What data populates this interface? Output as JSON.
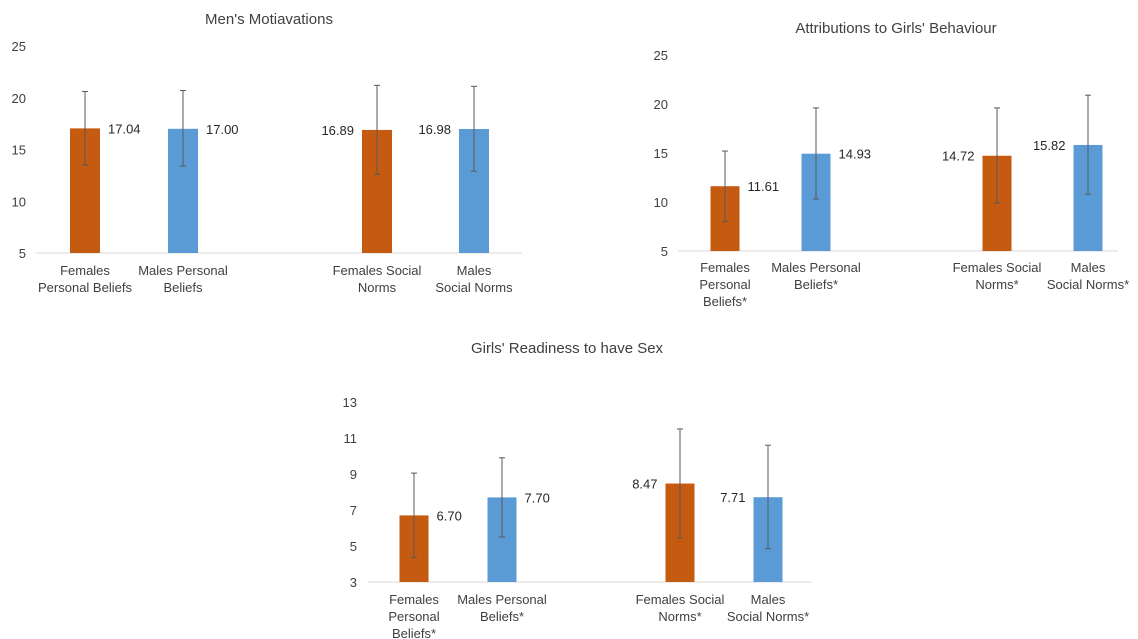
{
  "colors": {
    "females": "#c55a11",
    "males": "#5b9bd5",
    "axis": "#d9d9d9",
    "error": "#595959",
    "text": "#404040"
  },
  "chart_data": [
    {
      "type": "bar",
      "title": "Men's Motiavations",
      "ylim": [
        5,
        25
      ],
      "yticks": [
        5,
        10,
        15,
        20,
        25
      ],
      "grid": false,
      "categories": [
        [
          "Females",
          "Personal Beliefs"
        ],
        [
          "Males Personal",
          "Beliefs"
        ],
        [
          "Females Social",
          "Norms"
        ],
        [
          "Males",
          "Social Norms"
        ]
      ],
      "group": [
        "females",
        "males",
        "females",
        "males"
      ],
      "values": [
        17.04,
        17.0,
        16.89,
        16.98
      ],
      "value_labels": [
        "17.04",
        "17.00",
        "16.89",
        "16.98"
      ],
      "label_side": [
        "right",
        "right",
        "left",
        "left"
      ],
      "error": [
        [
          13.5,
          20.6
        ],
        [
          13.4,
          20.7
        ],
        [
          12.6,
          21.2
        ],
        [
          12.9,
          21.1
        ]
      ]
    },
    {
      "type": "bar",
      "title": "Attributions to Girls' Behaviour",
      "ylim": [
        5,
        25
      ],
      "yticks": [
        5,
        10,
        15,
        20,
        25
      ],
      "grid": false,
      "categories": [
        [
          "Females",
          "Personal",
          "Beliefs*"
        ],
        [
          "Males Personal",
          "Beliefs*"
        ],
        [
          "Females Social",
          "Norms*"
        ],
        [
          "Males",
          "Social Norms*"
        ]
      ],
      "group": [
        "females",
        "males",
        "females",
        "males"
      ],
      "values": [
        11.61,
        14.93,
        14.72,
        15.82
      ],
      "value_labels": [
        "11.61",
        "14.93",
        "14.72",
        "15.82"
      ],
      "label_side": [
        "right",
        "right",
        "left",
        "left"
      ],
      "error": [
        [
          8.0,
          15.2
        ],
        [
          10.3,
          19.6
        ],
        [
          9.9,
          19.6
        ],
        [
          10.8,
          20.9
        ]
      ]
    },
    {
      "type": "bar",
      "title": "Girls' Readiness to have Sex",
      "ylim": [
        3,
        13
      ],
      "yticks": [
        3,
        5,
        7,
        9,
        11,
        13
      ],
      "grid": false,
      "categories": [
        [
          "Females",
          "Personal",
          "Beliefs*"
        ],
        [
          "Males Personal",
          "Beliefs*"
        ],
        [
          "Females Social",
          "Norms*"
        ],
        [
          "Males",
          "Social Norms*"
        ]
      ],
      "group": [
        "females",
        "males",
        "females",
        "males"
      ],
      "values": [
        6.7,
        7.7,
        8.47,
        7.71
      ],
      "value_labels": [
        "6.70",
        "7.70",
        "8.47",
        "7.71"
      ],
      "label_side": [
        "right",
        "right",
        "left",
        "left"
      ],
      "error": [
        [
          4.35,
          9.05
        ],
        [
          5.5,
          9.9
        ],
        [
          5.45,
          11.5
        ],
        [
          4.85,
          10.6
        ]
      ]
    }
  ]
}
